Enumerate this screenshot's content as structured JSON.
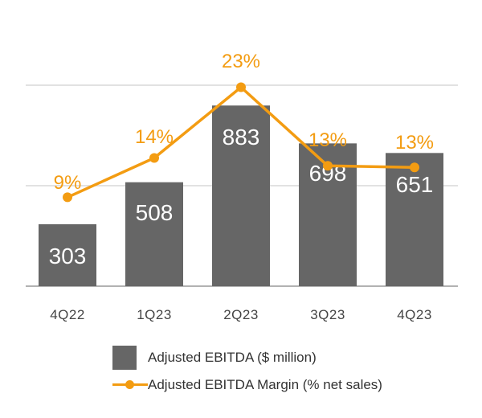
{
  "colors": {
    "bar": "#666666",
    "line": "#F39C12",
    "grid": "#d9d9d9",
    "axis": "#999999"
  },
  "chart_data": {
    "type": "bar",
    "categories": [
      "4Q22",
      "1Q23",
      "2Q23",
      "3Q23",
      "4Q23"
    ],
    "series": [
      {
        "name": "Adjusted EBITDA ($ million)",
        "kind": "bar",
        "values": [
          303,
          508,
          883,
          698,
          651
        ],
        "labels": [
          "303",
          "508",
          "883",
          "698",
          "651"
        ]
      },
      {
        "name": "Adjusted EBITDA Margin (% net sales)",
        "kind": "line",
        "values": [
          9,
          14,
          23,
          13,
          13
        ],
        "labels": [
          "9%",
          "14%",
          "23%",
          "13%",
          "13%"
        ]
      }
    ],
    "ylim_bars": [
      0,
      1000
    ],
    "ylim_margin": [
      0,
      24
    ],
    "grid": true,
    "legend_position": "bottom",
    "title": "",
    "xlabel": "",
    "ylabel": ""
  },
  "legend": [
    {
      "label": "Adjusted EBITDA ($ million)",
      "icon": "bar-swatch-icon"
    },
    {
      "label": "Adjusted EBITDA Margin (% net sales)",
      "icon": "line-marker-icon"
    }
  ]
}
